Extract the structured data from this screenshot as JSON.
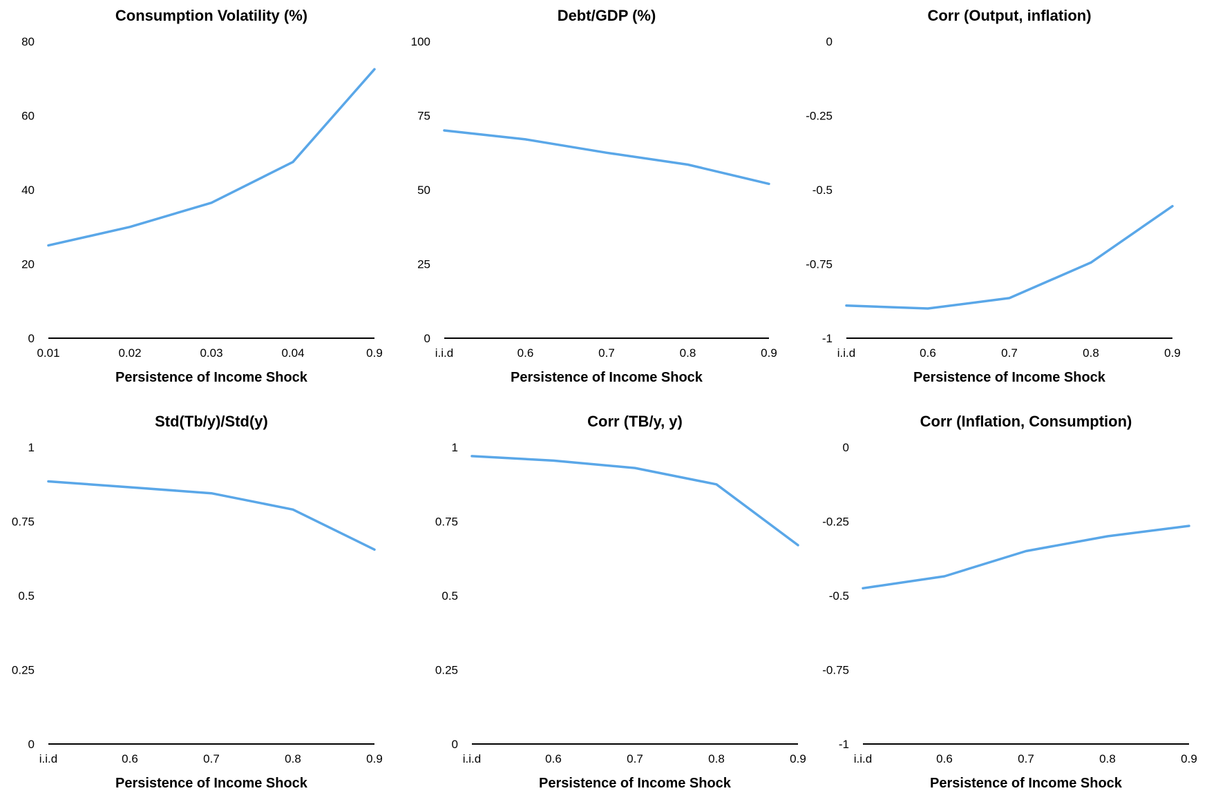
{
  "style": {
    "line_color": "#5aa7e8",
    "axis_color": "#000000"
  },
  "chart_data": [
    {
      "type": "line",
      "title": "Consumption Volatility (%)",
      "xlabel": "Persistence of Income Shock",
      "categories": [
        "0.01",
        "0.02",
        "0.03",
        "0.04",
        "0.9"
      ],
      "values": [
        25,
        30,
        36.5,
        47.5,
        72.5
      ],
      "ylim": [
        0,
        80
      ],
      "yticks": [
        "0",
        "20",
        "40",
        "60",
        "80"
      ]
    },
    {
      "type": "line",
      "title": "Debt/GDP (%)",
      "xlabel": "Persistence of Income Shock",
      "categories": [
        "i.i.d",
        "0.6",
        "0.7",
        "0.8",
        "0.9"
      ],
      "values": [
        70,
        67,
        62.5,
        58.5,
        52
      ],
      "ylim": [
        0,
        100
      ],
      "yticks": [
        "0",
        "25",
        "50",
        "75",
        "100"
      ]
    },
    {
      "type": "line",
      "title": "Corr (Output, inflation)",
      "xlabel": "Persistence of Income Shock",
      "categories": [
        "i.i.d",
        "0.6",
        "0.7",
        "0.8",
        "0.9"
      ],
      "values": [
        -0.89,
        -0.9,
        -0.865,
        -0.745,
        -0.555
      ],
      "ylim": [
        -1,
        0
      ],
      "yticks": [
        "-1",
        "-0.75",
        "-0.5",
        "-0.25",
        "0"
      ]
    },
    {
      "type": "line",
      "title": "Std(Tb/y)/Std(y)",
      "xlabel": "Persistence of Income Shock",
      "categories": [
        "i.i.d",
        "0.6",
        "0.7",
        "0.8",
        "0.9"
      ],
      "values": [
        0.885,
        0.865,
        0.845,
        0.79,
        0.655
      ],
      "ylim": [
        0,
        1
      ],
      "yticks": [
        "0",
        "0.25",
        "0.5",
        "0.75",
        "1"
      ]
    },
    {
      "type": "line",
      "title": "Corr (TB/y, y)",
      "xlabel": "Persistence of Income Shock",
      "categories": [
        "i.i.d",
        "0.6",
        "0.7",
        "0.8",
        "0.9"
      ],
      "values": [
        0.97,
        0.955,
        0.93,
        0.875,
        0.67
      ],
      "ylim": [
        0,
        1
      ],
      "yticks": [
        "0",
        "0.25",
        "0.5",
        "0.75",
        "1"
      ]
    },
    {
      "type": "line",
      "title": "Corr (Inflation, Consumption)",
      "xlabel": "Persistence of Income Shock",
      "categories": [
        "i.i.d",
        "0.6",
        "0.7",
        "0.8",
        "0.9"
      ],
      "values": [
        -0.475,
        -0.435,
        -0.35,
        -0.3,
        -0.265
      ],
      "ylim": [
        -1,
        0
      ],
      "yticks": [
        "-1",
        "-0.75",
        "-0.5",
        "-0.25",
        "0"
      ]
    }
  ]
}
